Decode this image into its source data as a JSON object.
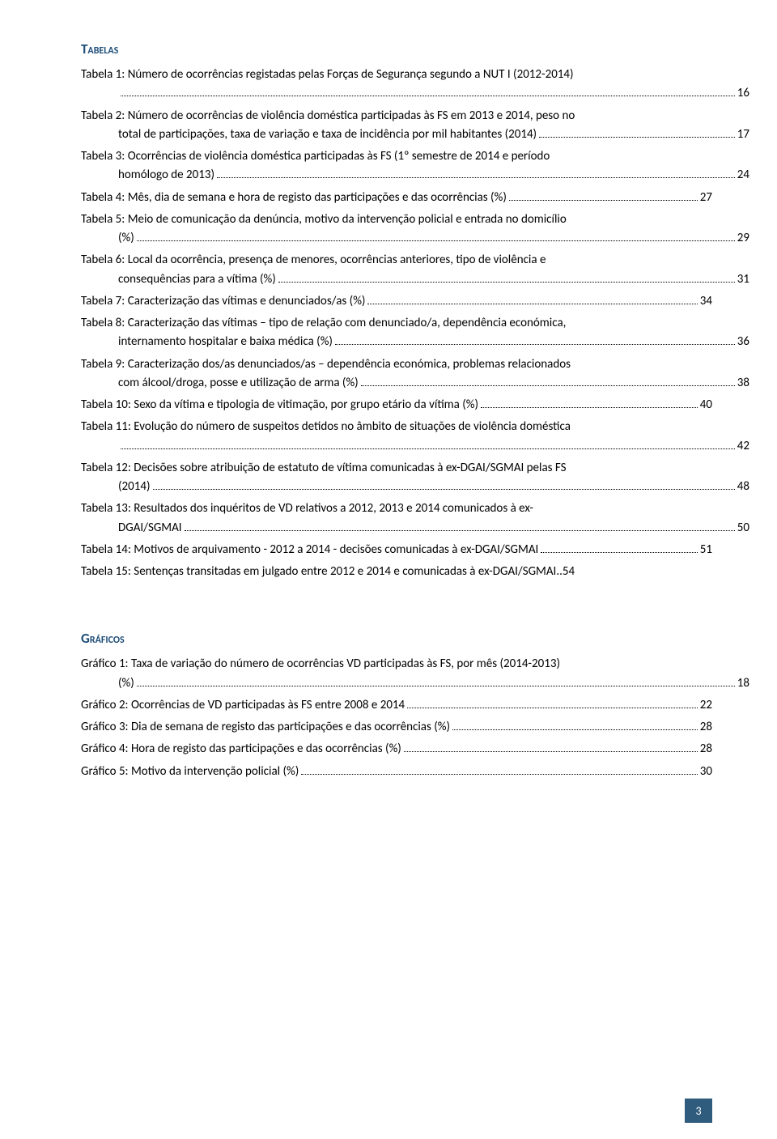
{
  "colors": {
    "heading_color": "#1f4e79",
    "body_text": "#000000",
    "page_box_bg": "#2f5b7c",
    "page_box_text": "#ffffff",
    "background": "#ffffff"
  },
  "typography": {
    "body_font": "Calibri",
    "body_fontsize_pt": 11,
    "heading_fontsize_pt": 13,
    "heading_weight": "bold",
    "heading_variant": "small-caps"
  },
  "sections": {
    "tabelas": {
      "heading": "Tabelas",
      "entries": [
        {
          "label": "Tabela 1: Número de ocorrências registadas pelas Forças de Segurança segundo a NUT I (2012-2014)",
          "lines": [
            "Tabela 1: Número de ocorrências registadas pelas Forças de Segurança segundo a NUT I (2012-2014)"
          ],
          "wrap_last": "",
          "page": "16"
        },
        {
          "label": "Tabela 2: Número de ocorrências de violência doméstica participadas às FS em 2013 e 2014, peso no total de participações, taxa de variação e taxa de incidência por mil habitantes (2014)",
          "lines": [
            "Tabela 2: Número de ocorrências de violência doméstica participadas às FS em 2013 e 2014, peso no"
          ],
          "wrap_last": "total de participações, taxa de variação e taxa de incidência por mil habitantes (2014)",
          "page": "17"
        },
        {
          "label": "Tabela 3: Ocorrências de violência doméstica participadas às FS (1º semestre de 2014 e período homólogo de 2013)",
          "lines": [
            "Tabela 3: Ocorrências de violência doméstica participadas às FS (1º semestre de 2014 e período"
          ],
          "wrap_last": "homólogo de 2013)",
          "page": "24"
        },
        {
          "label": "Tabela 4: Mês, dia de semana e hora de registo das participações e das ocorrências (%)",
          "lines": [],
          "wrap_last": "Tabela 4: Mês, dia de semana e hora de registo das participações e das ocorrências (%)",
          "page": "27",
          "no_indent": true
        },
        {
          "label": "Tabela 5: Meio de comunicação da denúncia, motivo da intervenção policial e entrada no domicílio (%)",
          "lines": [
            "Tabela 5: Meio de comunicação da denúncia, motivo da intervenção policial e entrada no domicílio"
          ],
          "wrap_last": "(%)",
          "page": "29"
        },
        {
          "label": "Tabela 6: Local da ocorrência, presença de menores, ocorrências anteriores, tipo de violência e consequências para a vítima (%)",
          "lines": [
            "Tabela 6: Local da ocorrência, presença de menores, ocorrências anteriores, tipo de violência e"
          ],
          "wrap_last": "consequências para a vítima (%)",
          "page": "31"
        },
        {
          "label": "Tabela 7: Caracterização das vítimas e denunciados/as (%)",
          "lines": [],
          "wrap_last": "Tabela 7: Caracterização das vítimas e denunciados/as (%)",
          "page": "34",
          "no_indent": true
        },
        {
          "label": "Tabela 8: Caracterização das vítimas – tipo de relação com denunciado/a, dependência económica, internamento hospitalar e baixa médica (%)",
          "lines": [
            "Tabela 8: Caracterização das vítimas – tipo de relação com denunciado/a, dependência económica,"
          ],
          "wrap_last": "internamento hospitalar e baixa médica (%)",
          "page": "36"
        },
        {
          "label": "Tabela 9: Caracterização dos/as denunciados/as – dependência económica, problemas relacionados com álcool/droga, posse e utilização de arma (%)",
          "lines": [
            "Tabela 9: Caracterização dos/as denunciados/as – dependência económica, problemas relacionados"
          ],
          "wrap_last": "com álcool/droga, posse e utilização de arma (%)",
          "page": "38"
        },
        {
          "label": "Tabela 10: Sexo da vítima e tipologia de vitimação, por grupo etário da vítima (%)",
          "lines": [],
          "wrap_last": "Tabela 10: Sexo da vítima e tipologia de vitimação, por grupo etário da vítima (%)",
          "page": "40",
          "no_indent": true
        },
        {
          "label": "Tabela 11: Evolução do número de suspeitos detidos no âmbito de situações de violência doméstica",
          "lines": [
            "Tabela 11: Evolução do número de suspeitos detidos no âmbito de situações de violência doméstica"
          ],
          "wrap_last": "",
          "page": "42"
        },
        {
          "label": "Tabela 12: Decisões sobre atribuição de estatuto de vítima comunicadas à ex-DGAI/SGMAI pelas FS (2014)",
          "lines": [
            "Tabela 12: Decisões sobre atribuição de estatuto de vítima comunicadas à ex-DGAI/SGMAI pelas FS"
          ],
          "wrap_last": "(2014)",
          "page": "48"
        },
        {
          "label": "Tabela 13: Resultados dos inquéritos de VD relativos a 2012, 2013 e 2014 comunicados à ex-DGAI/SGMAI",
          "lines": [
            "Tabela 13: Resultados dos inquéritos de VD relativos a 2012, 2013 e 2014 comunicados à ex-"
          ],
          "wrap_last": "DGAI/SGMAI",
          "page": "50"
        },
        {
          "label": "Tabela 14: Motivos de arquivamento - 2012 a 2014 - decisões comunicadas à ex-DGAI/SGMAI",
          "lines": [],
          "wrap_last": "Tabela 14: Motivos de arquivamento - 2012 a 2014 - decisões comunicadas à ex-DGAI/SGMAI",
          "page": "51",
          "no_indent": true
        },
        {
          "label": "Tabela 15: Sentenças transitadas em julgado entre 2012 e 2014 e comunicadas à ex-DGAI/SGMAI",
          "lines": [],
          "wrap_last": "Tabela 15: Sentenças transitadas em julgado entre 2012 e 2014 e comunicadas à ex-DGAI/SGMAI",
          "page": "54",
          "no_indent": true,
          "leader": ".."
        }
      ]
    },
    "graficos": {
      "heading": "Gráficos",
      "entries": [
        {
          "label": "Gráfico 1: Taxa de variação do número de ocorrências VD participadas às FS, por mês (2014-2013) (%)",
          "lines": [
            "Gráfico 1: Taxa de variação do número de ocorrências VD participadas às FS, por mês (2014-2013)"
          ],
          "wrap_last": "(%)",
          "page": "18"
        },
        {
          "label": "Gráfico 2: Ocorrências de VD participadas às FS entre 2008 e 2014",
          "lines": [],
          "wrap_last": "Gráfico 2: Ocorrências de VD participadas às FS entre 2008 e 2014",
          "page": "22",
          "no_indent": true
        },
        {
          "label": "Gráfico 3: Dia de semana de registo das participações e das ocorrências (%)",
          "lines": [],
          "wrap_last": "Gráfico 3: Dia de semana de registo das participações e das ocorrências (%)",
          "page": "28",
          "no_indent": true
        },
        {
          "label": "Gráfico 4: Hora de registo das participações e das ocorrências (%)",
          "lines": [],
          "wrap_last": "Gráfico 4: Hora de registo das participações e das ocorrências (%)",
          "page": "28",
          "no_indent": true
        },
        {
          "label": "Gráfico 5: Motivo da intervenção policial (%)",
          "lines": [],
          "wrap_last": "Gráfico 5: Motivo da intervenção policial (%)",
          "page": "30",
          "no_indent": true
        }
      ]
    }
  },
  "page_number": "3"
}
